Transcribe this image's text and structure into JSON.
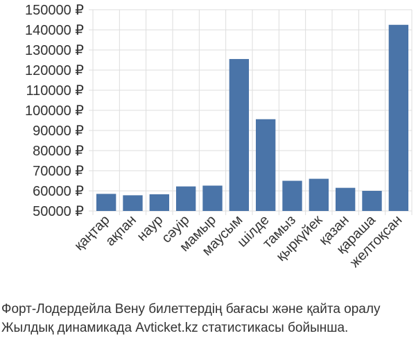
{
  "chart_data": {
    "type": "bar",
    "categories": [
      "қаңтар",
      "ақпан",
      "наур",
      "сәуір",
      "мамыр",
      "маусым",
      "шілде",
      "тамыз",
      "қыркүйек",
      "қазан",
      "қараша",
      "желтоқсан"
    ],
    "values": [
      58500,
      57800,
      58300,
      62200,
      62600,
      125500,
      95600,
      65000,
      66000,
      61500,
      60000,
      142500
    ],
    "yticks": [
      50000,
      60000,
      70000,
      80000,
      90000,
      100000,
      110000,
      120000,
      130000,
      140000,
      150000
    ],
    "ylim": [
      50000,
      150000
    ],
    "currency": "₽",
    "bar_color": "#4a74a8",
    "grid": true
  },
  "caption": {
    "line1": "Форт-Лодердейла Вену билеттердің бағасы және қайта оралу",
    "line2": "Жылдық динамикада Avticket.kz статистикасы бойынша."
  }
}
